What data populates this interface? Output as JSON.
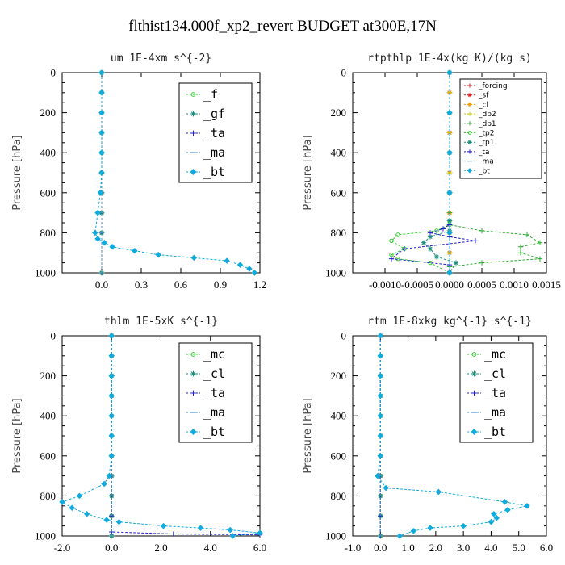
{
  "figure_title": "flthist134.000f_xp2_revert  BUDGET at300E,17N",
  "chart_data": [
    {
      "type": "line",
      "title": "um  1E-4xm s^{-2}",
      "ylabel": "Pressure [hPa]",
      "xlim": [
        -0.3,
        1.2
      ],
      "ylim": [
        1000,
        0
      ],
      "xticks": [
        0,
        0.3,
        0.6,
        0.9,
        1.2
      ],
      "xtick_labels": [
        "0.0",
        "0.3",
        "0.6",
        "0.9",
        "1.2"
      ],
      "yticks": [
        0,
        200,
        400,
        600,
        800,
        1000
      ],
      "ytick_labels": [
        "0",
        "200",
        "400",
        "600",
        "800",
        "1000"
      ],
      "legend_position": "top-right",
      "legend_size": "large",
      "series": [
        {
          "name": "_f",
          "color": "#33cc33",
          "marker": "circle",
          "x": [
            0,
            0,
            0,
            0,
            0,
            0,
            0,
            0,
            0,
            0
          ],
          "y": [
            0,
            100,
            200,
            300,
            400,
            500,
            600,
            700,
            800,
            1000
          ]
        },
        {
          "name": "_gf",
          "color": "#1a8c7a",
          "marker": "asterisk",
          "x": [
            0,
            0,
            0,
            0,
            0,
            0,
            0,
            0,
            0,
            0
          ],
          "y": [
            0,
            100,
            200,
            300,
            400,
            500,
            600,
            700,
            800,
            1000
          ]
        },
        {
          "name": "_ta",
          "color": "#2222cc",
          "marker": "plus",
          "x": [
            0,
            0,
            0,
            0,
            0,
            0,
            0,
            0,
            0,
            0
          ],
          "y": [
            0,
            100,
            200,
            300,
            400,
            500,
            600,
            700,
            800,
            1000
          ]
        },
        {
          "name": "_ma",
          "color": "#4c90c8",
          "marker": "dash",
          "x": [
            0,
            0,
            0,
            0,
            0,
            0,
            0,
            0,
            0,
            0
          ],
          "y": [
            0,
            100,
            200,
            300,
            400,
            500,
            600,
            700,
            800,
            1000
          ]
        },
        {
          "name": "_bt",
          "color": "#11aadd",
          "marker": "diamond",
          "x": [
            0,
            0,
            0,
            0,
            0,
            0,
            -0.01,
            -0.03,
            -0.05,
            -0.03,
            0.02,
            0.08,
            0.25,
            0.43,
            0.7,
            0.95,
            1.05,
            1.12,
            1.16
          ],
          "y": [
            0,
            100,
            200,
            300,
            400,
            500,
            600,
            700,
            800,
            830,
            850,
            870,
            890,
            910,
            925,
            940,
            960,
            980,
            1000
          ]
        }
      ]
    },
    {
      "type": "line",
      "title": "rtpthlp  1E-4x(kg K)/(kg s)",
      "ylabel": "Pressure [hPa]",
      "xlim": [
        -0.0015,
        0.0015
      ],
      "ylim": [
        1000,
        0
      ],
      "xticks": [
        -0.001,
        -0.0005,
        0,
        0.0005,
        0.001,
        0.0015
      ],
      "xtick_labels": [
        "-0.0010",
        "-0.0005",
        "0.0000",
        "0.0005",
        "0.0010",
        "0.0015"
      ],
      "yticks": [
        0,
        200,
        400,
        600,
        800,
        1000
      ],
      "ytick_labels": [
        "0",
        "200",
        "400",
        "600",
        "800",
        "1000"
      ],
      "legend_position": "top-right",
      "legend_size": "small",
      "series": [
        {
          "name": "_forcing",
          "color": "#dd2222",
          "marker": "plus",
          "x": [
            0,
            0,
            0,
            0,
            0,
            0,
            0,
            0,
            0,
            0,
            0
          ],
          "y": [
            0,
            100,
            200,
            300,
            400,
            500,
            600,
            700,
            800,
            900,
            1000
          ]
        },
        {
          "name": "_sf",
          "color": "#dd2222",
          "marker": "asterisk",
          "x": [
            0,
            0,
            0,
            0,
            0,
            0,
            0,
            0,
            0,
            0,
            0
          ],
          "y": [
            0,
            100,
            200,
            300,
            400,
            500,
            600,
            700,
            800,
            900,
            1000
          ]
        },
        {
          "name": "_cl",
          "color": "#ee9900",
          "marker": "asterisk",
          "x": [
            0,
            0,
            0,
            0,
            0,
            0,
            0,
            0,
            0,
            0,
            0
          ],
          "y": [
            0,
            100,
            200,
            300,
            400,
            500,
            600,
            700,
            800,
            900,
            1000
          ]
        },
        {
          "name": "_dp2",
          "color": "#cccc00",
          "marker": "plus",
          "x": [
            0,
            0,
            0,
            0,
            0,
            0,
            0,
            0,
            0,
            0,
            0
          ],
          "y": [
            0,
            100,
            200,
            300,
            400,
            500,
            600,
            700,
            800,
            900,
            1000
          ]
        },
        {
          "name": "_dp1",
          "color": "#33aa33",
          "marker": "plus",
          "x": [
            0,
            0,
            0,
            0,
            0,
            0,
            0,
            0.0005,
            0.0012,
            0.0014,
            0.0011,
            0.0011,
            0.0014,
            0.0005,
            0,
            0
          ],
          "y": [
            0,
            200,
            400,
            600,
            700,
            740,
            760,
            790,
            810,
            850,
            870,
            900,
            930,
            950,
            970,
            1000
          ]
        },
        {
          "name": "_tp2",
          "color": "#33cc33",
          "marker": "circle",
          "x": [
            0,
            0,
            0,
            0,
            0,
            0,
            -0.0002,
            -0.0008,
            -0.0009,
            -0.0007,
            -0.0009,
            -0.0008,
            -0.0003,
            0
          ],
          "y": [
            0,
            200,
            400,
            600,
            740,
            760,
            790,
            810,
            840,
            880,
            910,
            930,
            950,
            1000
          ]
        },
        {
          "name": "_tp1",
          "color": "#1a8c7a",
          "marker": "asterisk",
          "x": [
            0,
            0,
            0,
            0,
            0,
            0,
            -0.0003,
            -0.0004,
            -0.0003,
            -0.0002,
            0.0001,
            0
          ],
          "y": [
            0,
            200,
            400,
            600,
            740,
            790,
            820,
            850,
            880,
            920,
            950,
            1000
          ]
        },
        {
          "name": "_ta",
          "color": "#2222cc",
          "marker": "plus",
          "x": [
            0,
            0,
            0,
            0,
            0,
            -0.0001,
            -0.0003,
            0,
            0.0004,
            -0.0007,
            -0.0009,
            0,
            0
          ],
          "y": [
            0,
            200,
            400,
            600,
            760,
            780,
            800,
            820,
            840,
            880,
            930,
            960,
            1000
          ]
        },
        {
          "name": "_ma",
          "color": "#4c90c8",
          "marker": "dash",
          "x": [
            0,
            0,
            0,
            0,
            0,
            0
          ],
          "y": [
            0,
            200,
            400,
            600,
            800,
            1000
          ]
        },
        {
          "name": "_bt",
          "color": "#11aadd",
          "marker": "diamond",
          "x": [
            0,
            0,
            0,
            0,
            0,
            0
          ],
          "y": [
            0,
            200,
            400,
            600,
            800,
            1000
          ]
        }
      ]
    },
    {
      "type": "line",
      "title": "thlm  1E-5xK s^{-1}",
      "ylabel": "Pressure [hPa]",
      "xlim": [
        -2.0,
        6.0
      ],
      "ylim": [
        1000,
        0
      ],
      "xticks": [
        -2,
        0,
        2,
        4,
        6
      ],
      "xtick_labels": [
        "-2.0",
        "0.0",
        "2.0",
        "4.0",
        "6.0"
      ],
      "yticks": [
        0,
        200,
        400,
        600,
        800,
        1000
      ],
      "ytick_labels": [
        "0",
        "200",
        "400",
        "600",
        "800",
        "1000"
      ],
      "legend_position": "top-right",
      "legend_size": "large",
      "series": [
        {
          "name": "_mc",
          "color": "#33cc33",
          "marker": "circle",
          "x": [
            0,
            0,
            0,
            0,
            0,
            0,
            0,
            0,
            0,
            0,
            0
          ],
          "y": [
            0,
            100,
            200,
            300,
            400,
            500,
            600,
            700,
            800,
            900,
            1000
          ]
        },
        {
          "name": "_cl",
          "color": "#1a8c7a",
          "marker": "asterisk",
          "x": [
            0,
            0,
            0,
            0,
            0,
            0,
            0,
            0,
            0,
            0,
            0
          ],
          "y": [
            0,
            100,
            200,
            300,
            400,
            500,
            600,
            700,
            800,
            900,
            1000
          ]
        },
        {
          "name": "_ta",
          "color": "#2222cc",
          "marker": "plus",
          "x": [
            0,
            0,
            0,
            0,
            0,
            0,
            0,
            0,
            0,
            0,
            0,
            2.5,
            6.0
          ],
          "y": [
            0,
            100,
            200,
            300,
            400,
            500,
            600,
            700,
            800,
            900,
            980,
            990,
            995
          ]
        },
        {
          "name": "_ma",
          "color": "#4c90c8",
          "marker": "dash",
          "x": [
            0,
            0,
            0,
            0,
            0,
            0,
            0,
            0,
            0,
            0
          ],
          "y": [
            0,
            100,
            200,
            300,
            400,
            500,
            600,
            700,
            800,
            1000
          ]
        },
        {
          "name": "_bt",
          "color": "#11aadd",
          "marker": "diamond",
          "x": [
            0,
            0,
            0,
            0,
            0,
            0,
            0,
            -0.1,
            -0.3,
            -1.3,
            -2.0,
            -1.6,
            -1.0,
            -0.2,
            0.3,
            2.1,
            3.6,
            4.8,
            6.0,
            4.9
          ],
          "y": [
            0,
            100,
            200,
            300,
            400,
            500,
            600,
            700,
            740,
            800,
            830,
            860,
            890,
            920,
            930,
            950,
            960,
            970,
            985,
            1000
          ]
        }
      ]
    },
    {
      "type": "line",
      "title": "rtm  1E-8xkg kg^{-1} s^{-1}",
      "ylabel": "Pressure [hPa]",
      "xlim": [
        -1.0,
        6.0
      ],
      "ylim": [
        1000,
        0
      ],
      "xticks": [
        -1,
        0,
        1,
        2,
        3,
        4,
        5,
        6
      ],
      "xtick_labels": [
        "-1.0",
        "0.0",
        "1.0",
        "2.0",
        "3.0",
        "4.0",
        "5.0",
        "6.0"
      ],
      "yticks": [
        0,
        200,
        400,
        600,
        800,
        1000
      ],
      "ytick_labels": [
        "0",
        "200",
        "400",
        "600",
        "800",
        "1000"
      ],
      "legend_position": "top-right",
      "legend_size": "large",
      "series": [
        {
          "name": "_mc",
          "color": "#33cc33",
          "marker": "circle",
          "x": [
            0,
            0,
            0,
            0,
            0,
            0,
            0,
            0,
            0,
            0,
            0
          ],
          "y": [
            0,
            100,
            200,
            300,
            400,
            500,
            600,
            700,
            800,
            900,
            1000
          ]
        },
        {
          "name": "_cl",
          "color": "#1a8c7a",
          "marker": "asterisk",
          "x": [
            0,
            0,
            0,
            0,
            0,
            0,
            0,
            0,
            0,
            0,
            0
          ],
          "y": [
            0,
            100,
            200,
            300,
            400,
            500,
            600,
            700,
            800,
            900,
            1000
          ]
        },
        {
          "name": "_ta",
          "color": "#2222cc",
          "marker": "plus",
          "x": [
            0,
            0,
            0,
            0,
            0,
            0,
            0,
            0,
            0,
            0,
            0
          ],
          "y": [
            0,
            100,
            200,
            300,
            400,
            500,
            600,
            700,
            800,
            900,
            1000
          ]
        },
        {
          "name": "_ma",
          "color": "#4c90c8",
          "marker": "dash",
          "x": [
            0,
            0,
            0,
            0,
            0,
            0,
            0,
            0,
            0,
            0
          ],
          "y": [
            0,
            100,
            200,
            300,
            400,
            500,
            600,
            700,
            800,
            1000
          ]
        },
        {
          "name": "_bt",
          "color": "#11aadd",
          "marker": "diamond",
          "x": [
            0,
            0,
            0,
            0,
            0,
            0,
            0,
            -0.1,
            0.2,
            2.1,
            4.5,
            5.3,
            4.6,
            4.1,
            4.2,
            4.0,
            3.0,
            1.8,
            1.2,
            0.7
          ],
          "y": [
            0,
            100,
            200,
            300,
            400,
            500,
            600,
            700,
            760,
            780,
            830,
            850,
            870,
            890,
            910,
            930,
            950,
            960,
            975,
            1000
          ]
        }
      ]
    }
  ]
}
